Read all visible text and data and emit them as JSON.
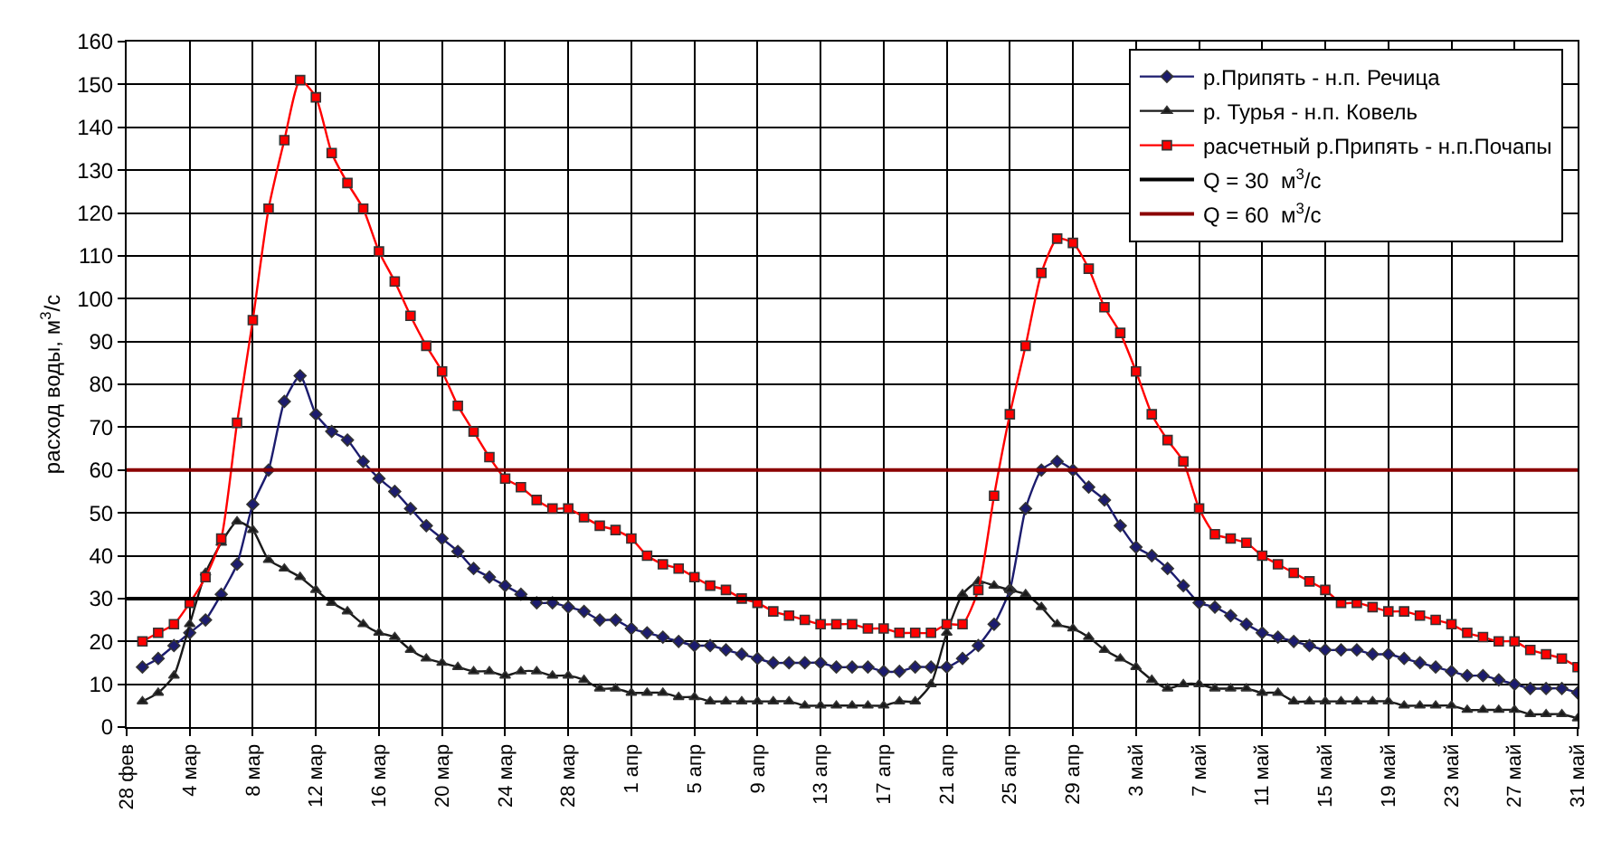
{
  "chart_data": {
    "type": "line",
    "ylabel": "расход воды, м$^{3}$/с",
    "x": [
      "--03-01",
      "--03-02",
      "--03-03",
      "--03-04",
      "--03-05",
      "--03-06",
      "--03-07",
      "--03-08",
      "--03-09",
      "--03-10",
      "--03-11",
      "--03-12",
      "--03-13",
      "--03-14",
      "--03-15",
      "--03-16",
      "--03-17",
      "--03-18",
      "--03-19",
      "--03-20",
      "--03-21",
      "--03-22",
      "--03-23",
      "--03-24",
      "--03-25",
      "--03-26",
      "--03-27",
      "--03-28",
      "--03-29",
      "--03-30",
      "--03-31",
      "--04-01",
      "--04-02",
      "--04-03",
      "--04-04",
      "--04-05",
      "--04-06",
      "--04-07",
      "--04-08",
      "--04-09",
      "--04-10",
      "--04-11",
      "--04-12",
      "--04-13",
      "--04-14",
      "--04-15",
      "--04-16",
      "--04-17",
      "--04-18",
      "--04-19",
      "--04-20",
      "--04-21",
      "--04-22",
      "--04-23",
      "--04-24",
      "--04-25",
      "--04-26",
      "--04-27",
      "--04-28",
      "--04-29",
      "--04-30",
      "--05-01",
      "--05-02",
      "--05-03",
      "--05-04",
      "--05-05",
      "--05-06",
      "--05-07",
      "--05-08",
      "--05-09",
      "--05-10",
      "--05-11",
      "--05-12",
      "--05-13",
      "--05-14",
      "--05-15",
      "--05-16",
      "--05-17",
      "--05-18",
      "--05-19",
      "--05-20",
      "--05-21",
      "--05-22",
      "--05-23",
      "--05-24",
      "--05-25",
      "--05-26",
      "--05-27",
      "--05-28",
      "--05-29",
      "--05-30",
      "--05-31"
    ],
    "series": [
      {
        "name": "р.Припять - н.п. Речица",
        "color": "#1c1c6e",
        "marker": "diamond",
        "values": [
          14,
          16,
          19,
          22,
          25,
          31,
          38,
          52,
          60,
          76,
          82,
          73,
          69,
          67,
          62,
          58,
          55,
          51,
          47,
          44,
          41,
          37,
          35,
          33,
          31,
          29,
          29,
          28,
          27,
          25,
          25,
          23,
          22,
          21,
          20,
          19,
          19,
          18,
          17,
          16,
          15,
          15,
          15,
          15,
          14,
          14,
          14,
          13,
          13,
          14,
          14,
          14,
          16,
          19,
          24,
          32,
          51,
          60,
          62,
          60,
          56,
          53,
          47,
          42,
          40,
          37,
          33,
          29,
          28,
          26,
          24,
          22,
          21,
          20,
          19,
          18,
          18,
          18,
          17,
          17,
          16,
          15,
          14,
          13,
          12,
          12,
          11,
          10,
          9,
          9,
          9,
          8
        ]
      },
      {
        "name": "р. Турья - н.п. Ковель",
        "color": "#1a1a1a",
        "marker": "triangle",
        "values": [
          6,
          8,
          12,
          24,
          36,
          43,
          48,
          46,
          39,
          37,
          35,
          32,
          29,
          27,
          24,
          22,
          21,
          18,
          16,
          15,
          14,
          13,
          13,
          12,
          13,
          13,
          12,
          12,
          11,
          9,
          9,
          8,
          8,
          8,
          7,
          7,
          6,
          6,
          6,
          6,
          6,
          6,
          5,
          5,
          5,
          5,
          5,
          5,
          6,
          6,
          10,
          22,
          31,
          34,
          33,
          32,
          31,
          28,
          24,
          23,
          21,
          18,
          16,
          14,
          11,
          9,
          10,
          10,
          9,
          9,
          9,
          8,
          8,
          6,
          6,
          6,
          6,
          6,
          6,
          6,
          5,
          5,
          5,
          5,
          4,
          4,
          4,
          4,
          3,
          3,
          3,
          2
        ]
      },
      {
        "name": "расчетный р.Припять - н.п.Почапы",
        "color": "#ff0000",
        "marker": "square",
        "values": [
          20,
          22,
          24,
          29,
          35,
          44,
          71,
          95,
          121,
          137,
          151,
          147,
          134,
          127,
          121,
          111,
          104,
          96,
          89,
          83,
          75,
          69,
          63,
          58,
          56,
          53,
          51,
          51,
          49,
          47,
          46,
          44,
          40,
          38,
          37,
          35,
          33,
          32,
          30,
          29,
          27,
          26,
          25,
          24,
          24,
          24,
          23,
          23,
          22,
          22,
          22,
          24,
          24,
          32,
          54,
          73,
          89,
          106,
          114,
          113,
          107,
          98,
          92,
          83,
          73,
          67,
          62,
          51,
          45,
          44,
          43,
          40,
          38,
          36,
          34,
          32,
          29,
          29,
          28,
          27,
          27,
          26,
          25,
          24,
          22,
          21,
          20,
          20,
          18,
          17,
          16,
          14
        ]
      }
    ],
    "ref_lines": [
      {
        "axis": "y",
        "value": 30,
        "label": "Q = 30  м$^{3}$/с",
        "color": "#000000"
      },
      {
        "axis": "y",
        "value": 60,
        "label": "Q = 60  м$^{3}$/с",
        "color": "#8b0000"
      }
    ],
    "xlim": [
      "--02-28",
      "--05-31"
    ],
    "xticks": [
      {
        "value": "--02-28",
        "label": "28 фев"
      },
      {
        "value": "--03-04",
        "label": "4 мар"
      },
      {
        "value": "--03-08",
        "label": "8 мар"
      },
      {
        "value": "--03-12",
        "label": "12 мар"
      },
      {
        "value": "--03-16",
        "label": "16 мар"
      },
      {
        "value": "--03-20",
        "label": "20 мар"
      },
      {
        "value": "--03-24",
        "label": "24 мар"
      },
      {
        "value": "--03-28",
        "label": "28 мар"
      },
      {
        "value": "--04-01",
        "label": "1 апр"
      },
      {
        "value": "--04-05",
        "label": "5 апр"
      },
      {
        "value": "--04-09",
        "label": "9 апр"
      },
      {
        "value": "--04-13",
        "label": "13 апр"
      },
      {
        "value": "--04-17",
        "label": "17 апр"
      },
      {
        "value": "--04-21",
        "label": "21 апр"
      },
      {
        "value": "--04-25",
        "label": "25 апр"
      },
      {
        "value": "--04-29",
        "label": "29 апр"
      },
      {
        "value": "--05-03",
        "label": "3 май"
      },
      {
        "value": "--05-07",
        "label": "7 май"
      },
      {
        "value": "--05-11",
        "label": "11 май"
      },
      {
        "value": "--05-15",
        "label": "15 май"
      },
      {
        "value": "--05-19",
        "label": "19 май"
      },
      {
        "value": "--05-23",
        "label": "23 май"
      },
      {
        "value": "--05-27",
        "label": "27 май"
      },
      {
        "value": "--05-31",
        "label": "31 май"
      }
    ],
    "ylim": [
      0,
      160
    ],
    "yticks": [
      0,
      10,
      20,
      30,
      40,
      50,
      60,
      70,
      80,
      90,
      100,
      110,
      120,
      130,
      140,
      150,
      160
    ],
    "grid": true,
    "legend": "top right",
    "line_style": "solid"
  }
}
